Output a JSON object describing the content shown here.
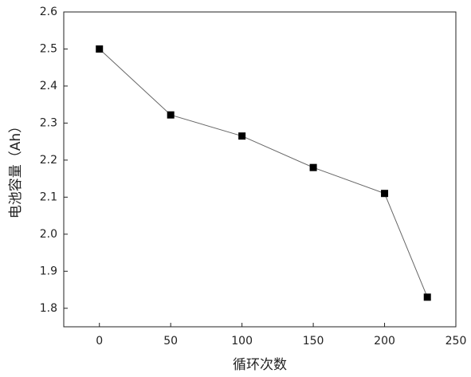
{
  "chart_data": {
    "type": "line",
    "x_label": "循环次数",
    "y_label": "电池容量（Ah）",
    "x": [
      0,
      50,
      100,
      150,
      200,
      230
    ],
    "series": [
      {
        "color": "#000000",
        "values": [
          2.5,
          2.322,
          2.265,
          2.18,
          2.11,
          1.83
        ]
      }
    ],
    "xlim": [
      -25,
      250
    ],
    "xticks": [
      0,
      50,
      100,
      150,
      200,
      250
    ],
    "ylim": [
      1.75,
      2.6
    ],
    "yticks": [
      1.8,
      1.9,
      {
        "value": 2,
        "label": "2.0"
      },
      2.1,
      2.2,
      2.3,
      2.4,
      2.5,
      2.6
    ],
    "grid": false
  }
}
